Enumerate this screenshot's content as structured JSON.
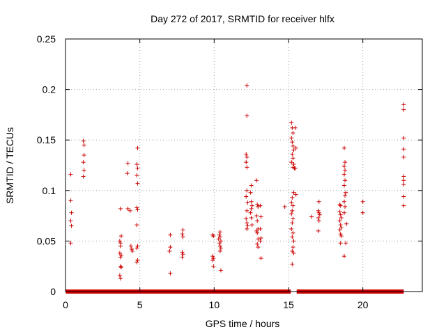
{
  "chart_data": {
    "type": "scatter",
    "title": "Day 272 of 2017, SRMTID for receiver hlfx",
    "xlabel": "GPS time / hours",
    "ylabel": "SRMTID / TECUs",
    "xlim": [
      0,
      24
    ],
    "ylim": [
      0,
      0.25
    ],
    "xticks": [
      "0",
      "5",
      "10",
      "15",
      "20"
    ],
    "yticks": [
      "0",
      "0.05",
      "0.1",
      "0.15",
      "0.2",
      "0.25"
    ],
    "grid": true,
    "marker": "plus",
    "color": "#cc0000",
    "baseline_segments": [
      [
        0.02,
        15.15
      ],
      [
        15.55,
        22.75
      ]
    ],
    "points": [
      [
        0.35,
        0.116
      ],
      [
        0.35,
        0.09
      ],
      [
        0.4,
        0.078
      ],
      [
        0.35,
        0.07
      ],
      [
        0.4,
        0.065
      ],
      [
        0.35,
        0.048
      ],
      [
        1.2,
        0.149
      ],
      [
        1.25,
        0.145
      ],
      [
        1.25,
        0.135
      ],
      [
        1.2,
        0.128
      ],
      [
        1.25,
        0.12
      ],
      [
        1.2,
        0.114
      ],
      [
        3.7,
        0.082
      ],
      [
        3.75,
        0.055
      ],
      [
        3.65,
        0.05
      ],
      [
        3.7,
        0.048
      ],
      [
        3.7,
        0.045
      ],
      [
        3.65,
        0.038
      ],
      [
        3.75,
        0.036
      ],
      [
        3.7,
        0.034
      ],
      [
        3.7,
        0.025
      ],
      [
        3.75,
        0.024
      ],
      [
        3.65,
        0.016
      ],
      [
        3.7,
        0.013
      ],
      [
        4.2,
        0.127
      ],
      [
        4.15,
        0.117
      ],
      [
        4.2,
        0.082
      ],
      [
        4.35,
        0.08
      ],
      [
        4.4,
        0.045
      ],
      [
        4.45,
        0.042
      ],
      [
        4.5,
        0.04
      ],
      [
        4.85,
        0.142
      ],
      [
        4.8,
        0.126
      ],
      [
        4.85,
        0.122
      ],
      [
        4.8,
        0.115
      ],
      [
        4.85,
        0.107
      ],
      [
        4.8,
        0.083
      ],
      [
        4.85,
        0.081
      ],
      [
        4.8,
        0.066
      ],
      [
        4.85,
        0.045
      ],
      [
        4.8,
        0.043
      ],
      [
        4.85,
        0.031
      ],
      [
        4.8,
        0.029
      ],
      [
        7.05,
        0.056
      ],
      [
        7.05,
        0.044
      ],
      [
        7.0,
        0.04
      ],
      [
        7.05,
        0.018
      ],
      [
        7.9,
        0.061
      ],
      [
        7.85,
        0.057
      ],
      [
        7.9,
        0.054
      ],
      [
        7.85,
        0.039
      ],
      [
        7.9,
        0.037
      ],
      [
        7.85,
        0.034
      ],
      [
        9.9,
        0.056
      ],
      [
        9.95,
        0.055
      ],
      [
        9.9,
        0.035
      ],
      [
        9.95,
        0.033
      ],
      [
        9.9,
        0.031
      ],
      [
        9.95,
        0.025
      ],
      [
        10.4,
        0.059
      ],
      [
        10.35,
        0.056
      ],
      [
        10.4,
        0.054
      ],
      [
        10.3,
        0.052
      ],
      [
        10.45,
        0.05
      ],
      [
        10.35,
        0.048
      ],
      [
        10.4,
        0.045
      ],
      [
        10.45,
        0.043
      ],
      [
        10.4,
        0.04
      ],
      [
        10.45,
        0.021
      ],
      [
        12.2,
        0.204
      ],
      [
        12.2,
        0.174
      ],
      [
        12.15,
        0.136
      ],
      [
        12.2,
        0.133
      ],
      [
        12.15,
        0.128
      ],
      [
        12.2,
        0.123
      ],
      [
        12.2,
        0.1
      ],
      [
        12.15,
        0.094
      ],
      [
        12.25,
        0.088
      ],
      [
        12.2,
        0.08
      ],
      [
        12.15,
        0.072
      ],
      [
        12.2,
        0.068
      ],
      [
        12.25,
        0.065
      ],
      [
        12.2,
        0.062
      ],
      [
        12.5,
        0.105
      ],
      [
        12.45,
        0.098
      ],
      [
        12.5,
        0.089
      ],
      [
        12.55,
        0.085
      ],
      [
        12.5,
        0.082
      ],
      [
        12.45,
        0.078
      ],
      [
        12.5,
        0.073
      ],
      [
        12.55,
        0.066
      ],
      [
        12.85,
        0.11
      ],
      [
        12.9,
        0.086
      ],
      [
        12.95,
        0.084
      ],
      [
        12.85,
        0.075
      ],
      [
        12.9,
        0.07
      ],
      [
        12.95,
        0.062
      ],
      [
        12.85,
        0.06
      ],
      [
        12.9,
        0.058
      ],
      [
        12.95,
        0.052
      ],
      [
        12.9,
        0.047
      ],
      [
        12.95,
        0.044
      ],
      [
        13.1,
        0.085
      ],
      [
        13.15,
        0.074
      ],
      [
        13.1,
        0.062
      ],
      [
        13.15,
        0.053
      ],
      [
        13.1,
        0.05
      ],
      [
        13.15,
        0.033
      ],
      [
        14.75,
        0.084
      ],
      [
        15.2,
        0.167
      ],
      [
        15.25,
        0.162
      ],
      [
        15.3,
        0.157
      ],
      [
        15.2,
        0.152
      ],
      [
        15.25,
        0.148
      ],
      [
        15.3,
        0.144
      ],
      [
        15.35,
        0.14
      ],
      [
        15.25,
        0.136
      ],
      [
        15.3,
        0.132
      ],
      [
        15.2,
        0.128
      ],
      [
        15.35,
        0.126
      ],
      [
        15.3,
        0.123
      ],
      [
        15.4,
        0.122
      ],
      [
        15.35,
        0.098
      ],
      [
        15.25,
        0.093
      ],
      [
        15.2,
        0.088
      ],
      [
        15.3,
        0.085
      ],
      [
        15.25,
        0.08
      ],
      [
        15.2,
        0.077
      ],
      [
        15.3,
        0.072
      ],
      [
        15.25,
        0.068
      ],
      [
        15.2,
        0.062
      ],
      [
        15.3,
        0.058
      ],
      [
        15.25,
        0.054
      ],
      [
        15.35,
        0.05
      ],
      [
        15.3,
        0.044
      ],
      [
        15.25,
        0.04
      ],
      [
        15.35,
        0.038
      ],
      [
        15.25,
        0.027
      ],
      [
        15.45,
        0.162
      ],
      [
        15.5,
        0.142
      ],
      [
        15.45,
        0.122
      ],
      [
        15.5,
        0.096
      ],
      [
        16.55,
        0.074
      ],
      [
        17.05,
        0.089
      ],
      [
        17.0,
        0.08
      ],
      [
        17.05,
        0.078
      ],
      [
        17.1,
        0.076
      ],
      [
        17.0,
        0.073
      ],
      [
        17.05,
        0.07
      ],
      [
        17.0,
        0.06
      ],
      [
        18.45,
        0.086
      ],
      [
        18.5,
        0.085
      ],
      [
        18.45,
        0.079
      ],
      [
        18.5,
        0.076
      ],
      [
        18.55,
        0.073
      ],
      [
        18.45,
        0.07
      ],
      [
        18.5,
        0.066
      ],
      [
        18.55,
        0.063
      ],
      [
        18.45,
        0.061
      ],
      [
        18.5,
        0.057
      ],
      [
        18.55,
        0.055
      ],
      [
        18.5,
        0.048
      ],
      [
        18.75,
        0.142
      ],
      [
        18.8,
        0.128
      ],
      [
        18.75,
        0.124
      ],
      [
        18.8,
        0.12
      ],
      [
        18.75,
        0.116
      ],
      [
        18.8,
        0.11
      ],
      [
        18.75,
        0.105
      ],
      [
        18.85,
        0.098
      ],
      [
        18.8,
        0.095
      ],
      [
        18.75,
        0.089
      ],
      [
        18.8,
        0.084
      ],
      [
        18.75,
        0.078
      ],
      [
        18.9,
        0.067
      ],
      [
        18.85,
        0.048
      ],
      [
        18.75,
        0.035
      ],
      [
        20.0,
        0.089
      ],
      [
        20.0,
        0.078
      ],
      [
        22.75,
        0.185
      ],
      [
        22.75,
        0.18
      ],
      [
        22.75,
        0.152
      ],
      [
        22.75,
        0.141
      ],
      [
        22.75,
        0.133
      ],
      [
        22.75,
        0.114
      ],
      [
        22.75,
        0.11
      ],
      [
        22.75,
        0.106
      ],
      [
        22.75,
        0.094
      ],
      [
        22.75,
        0.085
      ]
    ]
  }
}
